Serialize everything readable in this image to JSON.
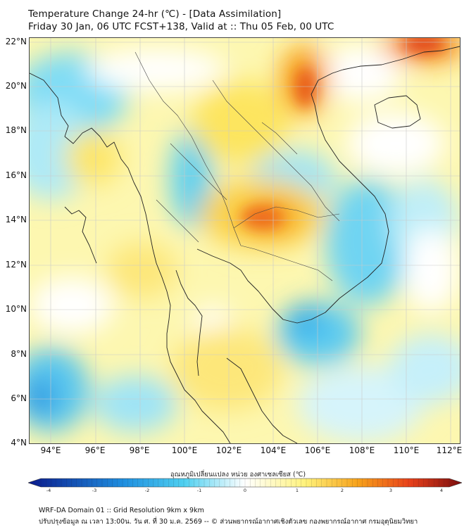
{
  "header": {
    "title_line1": "Temperature Change 24-hr (℃) - [Data Assimilation]",
    "title_line2": "Friday 30 Jan, 06 UTC FCST+138, Valid at :: Thu 05 Feb, 00 UTC"
  },
  "map": {
    "lat_labels": [
      "22°N",
      "20°N",
      "18°N",
      "16°N",
      "14°N",
      "12°N",
      "10°N",
      "8°N",
      "6°N",
      "4°N"
    ],
    "lon_labels": [
      "94°E",
      "96°E",
      "98°E",
      "100°E",
      "102°E",
      "104°E",
      "106°E",
      "108°E",
      "110°E",
      "112°E"
    ],
    "lat_range": [
      4,
      22
    ],
    "lon_range": [
      93,
      112.5
    ],
    "gridlines": true
  },
  "colorbar": {
    "title": "อุณหภูมิเปลี่ยนแปลง หน่วย องศาเซลเซียส (℃)",
    "ticks": [
      "-4",
      "-3",
      "-2",
      "-1",
      "0",
      "1",
      "2",
      "3",
      "4"
    ],
    "range": [
      -4,
      4
    ],
    "colors": {
      "cold_end": "#0a1a8c",
      "cold": "#1f8fe0",
      "cool": "#4fd0f0",
      "neutral": "#ffffff",
      "warm": "#fff27a",
      "hot": "#f7a21b",
      "hotter": "#e8401a",
      "hot_end": "#7a0d0d"
    }
  },
  "footer": {
    "line1": "WRF-DA Domain 01 :: Grid Resolution 9km x 9km",
    "line2": "ปรับปรุงข้อมูล ณ เวลา 13:00น. วัน ศ. ที่ 30 ม.ค. 2569 -- © ส่วนพยากรณ์อากาศเชิงตัวเลข กองพยากรณ์อากาศ กรมอุตุนิยมวิทยา"
  }
}
